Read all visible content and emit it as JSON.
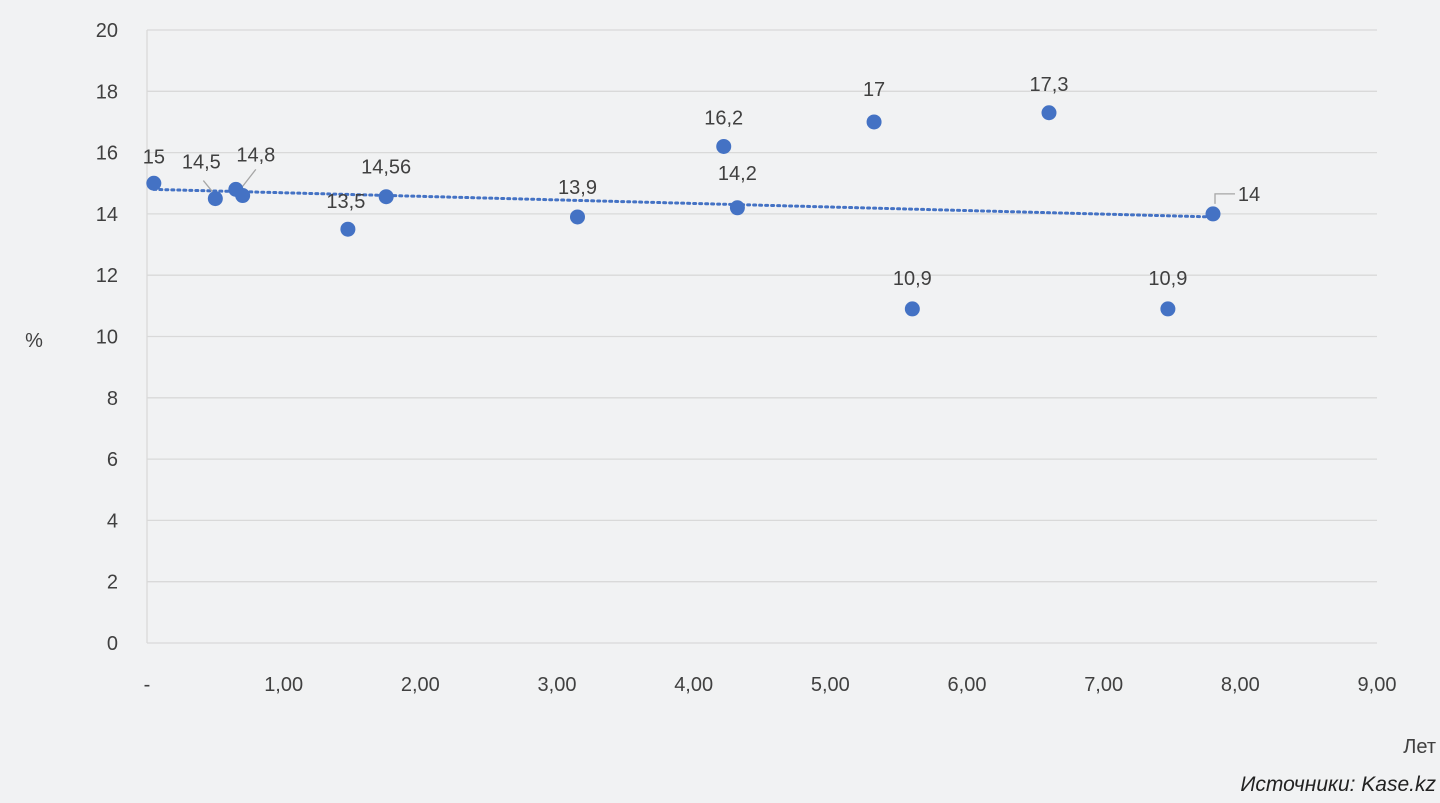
{
  "chart_data": {
    "type": "scatter",
    "xlabel": "Лет",
    "ylabel": "%",
    "xlim": [
      0,
      9
    ],
    "ylim": [
      0,
      20
    ],
    "x_ticks": [
      {
        "value": 0,
        "label": "-"
      },
      {
        "value": 1,
        "label": "1,00"
      },
      {
        "value": 2,
        "label": "2,00"
      },
      {
        "value": 3,
        "label": "3,00"
      },
      {
        "value": 4,
        "label": "4,00"
      },
      {
        "value": 5,
        "label": "5,00"
      },
      {
        "value": 6,
        "label": "6,00"
      },
      {
        "value": 7,
        "label": "7,00"
      },
      {
        "value": 8,
        "label": "8,00"
      },
      {
        "value": 9,
        "label": "9,00"
      }
    ],
    "y_ticks": [
      0,
      2,
      4,
      6,
      8,
      10,
      12,
      14,
      16,
      18,
      20
    ],
    "grid": "horizontal",
    "trendline": {
      "style": "dotted",
      "type": "linear",
      "x_start": 0.05,
      "y_start": 14.8,
      "x_end": 7.8,
      "y_end": 13.9
    },
    "points": [
      {
        "x": 0.05,
        "y": 15,
        "label": "15"
      },
      {
        "x": 0.5,
        "y": 14.5,
        "label": "14,5"
      },
      {
        "x": 0.65,
        "y": 14.8,
        "label": "14,8"
      },
      {
        "x": 0.7,
        "y": 14.6,
        "label": ""
      },
      {
        "x": 1.47,
        "y": 13.5,
        "label": "13,5"
      },
      {
        "x": 1.75,
        "y": 14.56,
        "label": "14,56"
      },
      {
        "x": 3.15,
        "y": 13.9,
        "label": "13,9"
      },
      {
        "x": 4.22,
        "y": 16.2,
        "label": "16,2"
      },
      {
        "x": 4.32,
        "y": 14.2,
        "label": "14,2"
      },
      {
        "x": 5.32,
        "y": 17,
        "label": "17"
      },
      {
        "x": 5.6,
        "y": 10.9,
        "label": "10,9"
      },
      {
        "x": 6.6,
        "y": 17.3,
        "label": "17,3"
      },
      {
        "x": 7.47,
        "y": 10.9,
        "label": "10,9"
      },
      {
        "x": 7.8,
        "y": 14,
        "label": "14"
      }
    ],
    "colors": {
      "point": "#4472c4",
      "trend": "#4472c4",
      "grid": "#d9d9d9"
    }
  },
  "source": "Источники: Kase.kz"
}
